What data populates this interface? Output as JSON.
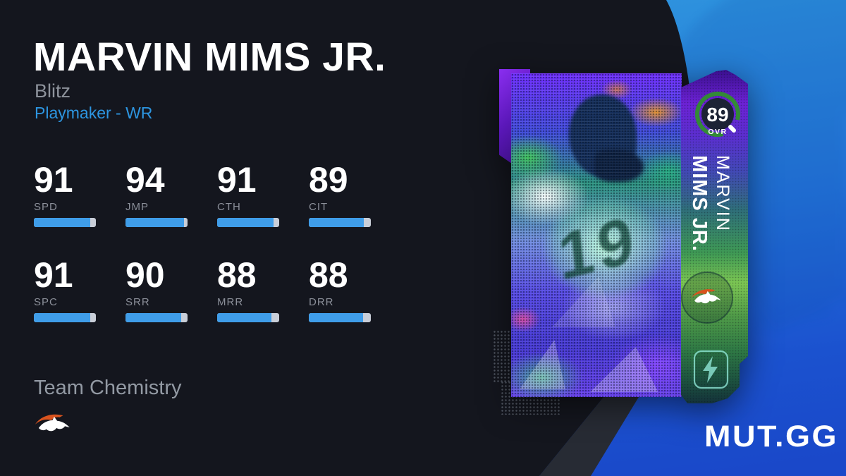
{
  "player": {
    "name": "MARVIN MIMS JR.",
    "program": "Blitz",
    "archetype_position": "Playmaker - WR"
  },
  "stats": {
    "rows": [
      [
        {
          "abbr": "SPD",
          "value": 91
        },
        {
          "abbr": "JMP",
          "value": 94
        },
        {
          "abbr": "CTH",
          "value": 91
        },
        {
          "abbr": "CIT",
          "value": 89
        }
      ],
      [
        {
          "abbr": "SPC",
          "value": 91
        },
        {
          "abbr": "SRR",
          "value": 90
        },
        {
          "abbr": "MRR",
          "value": 88
        },
        {
          "abbr": "DRR",
          "value": 88
        }
      ]
    ]
  },
  "chemistry": {
    "label": "Team Chemistry",
    "team_icon": "denver-broncos-logo"
  },
  "card": {
    "overall": "89",
    "overall_label": "OVR",
    "name_first": "MARVIN",
    "name_last": "MIMS JR.",
    "jersey_number": "19",
    "team_icon": "denver-broncos-logo",
    "program_icon": "blitz-lightning-icon"
  },
  "branding": {
    "logo_text": "MUT.GG"
  },
  "colors": {
    "background_dark": "#14161e",
    "accent_blue_text": "#2d96e2",
    "bar_fill": "#3f9de9",
    "bar_empty": "#c9ced8",
    "blue_top": "#2f95de",
    "blue_bottom": "#1a48c9",
    "ovr_ring_green": "#338a36"
  }
}
